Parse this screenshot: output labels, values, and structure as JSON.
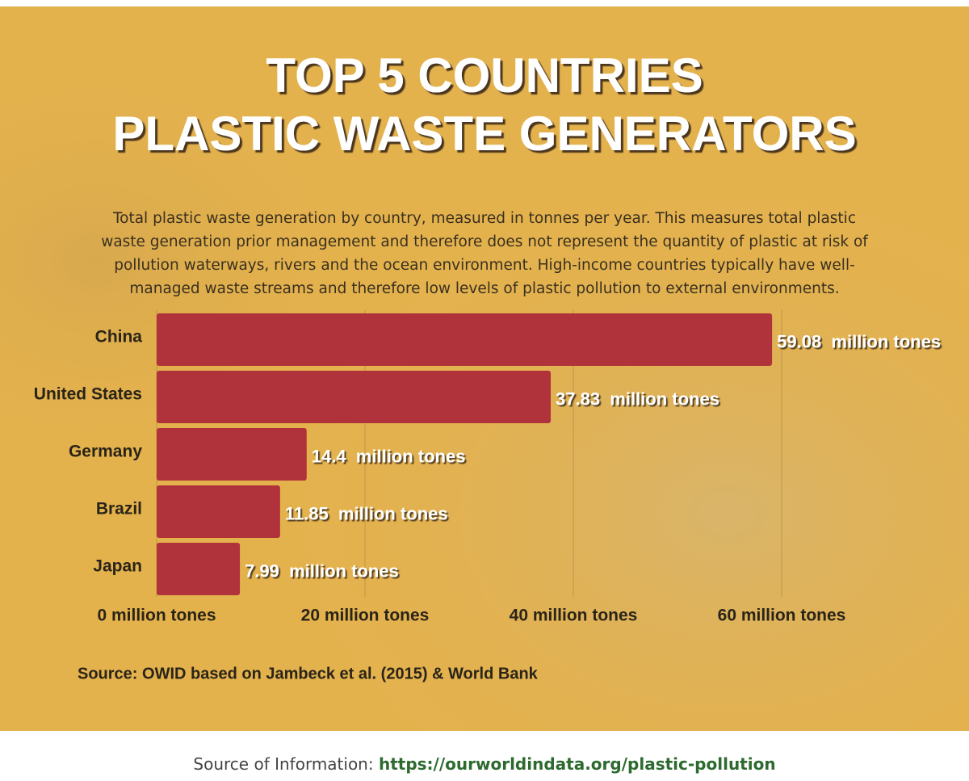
{
  "chart_data": {
    "type": "bar",
    "orientation": "horizontal",
    "title": [
      "TOP 5 COUNTRIES",
      "PLASTIC WASTE GENERATORS"
    ],
    "subtitle": "Total plastic waste generation by country, measured in tonnes per year. This measures total plastic waste generation prior management and therefore does not represent the quantity of plastic at risk of pollution waterways, rivers and the ocean environment. High-income countries typically have well-managed waste streams and therefore low levels of plastic pollution to external environments.",
    "categories": [
      "China",
      "United States",
      "Germany",
      "Brazil",
      "Japan"
    ],
    "values": [
      59.08,
      37.83,
      14.4,
      11.85,
      7.99
    ],
    "value_labels": [
      "59.08  million tones",
      "37.83  million tones",
      "14.4  million tones",
      "11.85  million tones",
      "7.99  million tones"
    ],
    "color": "#b0323b",
    "xlim": [
      0,
      60
    ],
    "xticks": [
      {
        "value": 0,
        "label": "0 million tones"
      },
      {
        "value": 20,
        "label": "20 million tones"
      },
      {
        "value": 40,
        "label": "40 million tones"
      },
      {
        "value": 60,
        "label": "60 million tones"
      }
    ],
    "grid": true,
    "source": "Source: OWID based on Jambeck et al. (2015) & World Bank"
  },
  "footer": {
    "label": "Source of Information:",
    "link": "https://ourworldindata.org/plastic-pollution"
  }
}
